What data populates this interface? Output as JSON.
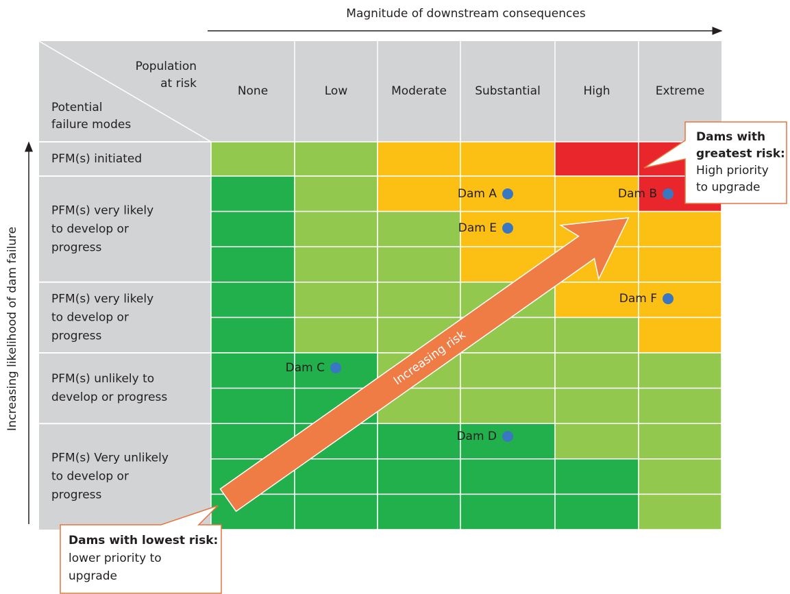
{
  "header": {
    "axis_top": "Magnitude of downstream consequences",
    "axis_left": "Increasing likelihood of dam failure",
    "corner_top": [
      "Population",
      "at risk"
    ],
    "corner_bottom": [
      "Potential",
      "failure modes"
    ]
  },
  "columns": [
    "None",
    "Low",
    "Moderate",
    "Substantial",
    "High",
    "Extreme"
  ],
  "rows": [
    {
      "lines": [
        "PFM(s) initiated"
      ],
      "cells": [
        [
          "#93c84f",
          "#93c84f",
          "#fcbf13",
          "#fcbf13",
          "#e8262b",
          "#e8262b"
        ]
      ]
    },
    {
      "lines": [
        "PFM(s) very likely",
        "to develop or",
        "progress"
      ],
      "cells": [
        [
          "#21b04b",
          "#93c84f",
          "#fcbf13",
          "#fcbf13",
          "#fcbf13",
          "#e8262b"
        ],
        [
          "#21b04b",
          "#93c84f",
          "#93c84f",
          "#fcbf13",
          "#fcbf13",
          "#fcbf13"
        ],
        [
          "#21b04b",
          "#93c84f",
          "#93c84f",
          "#fcbf13",
          "#fcbf13",
          "#fcbf13"
        ]
      ]
    },
    {
      "lines": [
        "PFM(s) very likely",
        "to develop or",
        "progress"
      ],
      "cells": [
        [
          "#21b04b",
          "#93c84f",
          "#93c84f",
          "#93c84f",
          "#fcbf13",
          "#fcbf13"
        ],
        [
          "#21b04b",
          "#93c84f",
          "#93c84f",
          "#93c84f",
          "#93c84f",
          "#fcbf13"
        ]
      ]
    },
    {
      "lines": [
        "PFM(s) unlikely to",
        "develop or progress"
      ],
      "cells": [
        [
          "#21b04b",
          "#21b04b",
          "#93c84f",
          "#93c84f",
          "#93c84f",
          "#93c84f"
        ],
        [
          "#21b04b",
          "#21b04b",
          "#93c84f",
          "#93c84f",
          "#93c84f",
          "#93c84f"
        ]
      ]
    },
    {
      "lines": [
        "PFM(s) Very unlikely",
        "to develop or",
        "progress"
      ],
      "cells": [
        [
          "#21b04b",
          "#21b04b",
          "#21b04b",
          "#21b04b",
          "#93c84f",
          "#93c84f"
        ],
        [
          "#21b04b",
          "#21b04b",
          "#21b04b",
          "#21b04b",
          "#21b04b",
          "#93c84f"
        ],
        [
          "#21b04b",
          "#21b04b",
          "#21b04b",
          "#21b04b",
          "#21b04b",
          "#93c84f"
        ]
      ]
    }
  ],
  "dams": [
    "Dam A",
    "Dam B",
    "Dam E",
    "Dam F",
    "Dam C",
    "Dam D"
  ],
  "arrow_label": "Increasing risk",
  "callouts": [
    {
      "bold": [
        "Dams with",
        "greatest risk:"
      ],
      "text": [
        "High priority",
        "to upgrade"
      ]
    },
    {
      "bold": [
        "Dams with lowest risk:"
      ],
      "text": [
        "lower priority to",
        "upgrade"
      ]
    }
  ]
}
